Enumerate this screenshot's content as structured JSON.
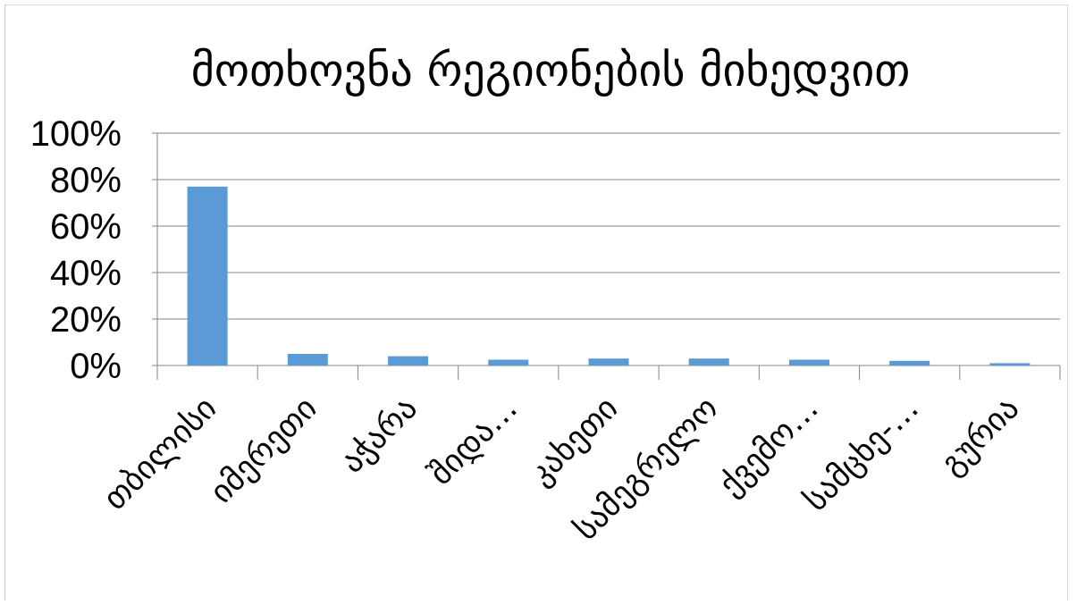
{
  "chart_data": {
    "type": "bar",
    "title": "მოთხოვნა რეგიონების მიხედვით",
    "xlabel": "",
    "ylabel": "",
    "categories": [
      "თბილისი",
      "იმერეთი",
      "აჭარა",
      "შიდა…",
      "კახეთი",
      "სამეგრელო",
      "ქვემო…",
      "სამცხე-…",
      "გურია"
    ],
    "values": [
      77,
      5,
      4,
      2.5,
      3,
      3,
      2.5,
      2,
      1
    ],
    "ylim": [
      0,
      100
    ],
    "yticks": [
      0,
      20,
      40,
      60,
      80,
      100
    ],
    "ytick_labels": [
      "0%",
      "20%",
      "40%",
      "60%",
      "80%",
      "100%"
    ],
    "grid": true,
    "legend": "none",
    "bar_color": "#5b9bd5",
    "grid_color": "#868686"
  }
}
